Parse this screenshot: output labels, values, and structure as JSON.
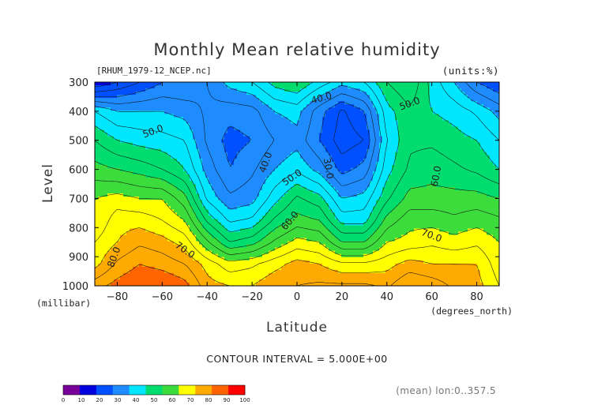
{
  "chart_data": {
    "type": "heatmap",
    "title": "Monthly Mean relative humidity",
    "subtitle": "[RHUM_1979-12_NCEP.nc]",
    "units_label": "(units:%)",
    "xlabel": "Latitude",
    "xlabel_units": "(degrees_north)",
    "ylabel": "Level",
    "ylabel_units": "(millibar)",
    "xlim": [
      -90,
      90
    ],
    "ylim": [
      1000,
      300
    ],
    "x_ticks": [
      -80,
      -60,
      -40,
      -20,
      0,
      20,
      40,
      60,
      80
    ],
    "x_tick_labels": [
      "−80",
      "−60",
      "−40",
      "−20",
      "0",
      "20",
      "40",
      "60",
      "80"
    ],
    "y_ticks": [
      300,
      400,
      500,
      600,
      700,
      800,
      900,
      1000
    ],
    "contour_interval_text": "CONTOUR INTERVAL = 5.000E+00",
    "footnote": "(mean) lon:0..357.5",
    "colorbar": {
      "levels": [
        0,
        10,
        20,
        30,
        40,
        50,
        60,
        70,
        80,
        90,
        100
      ],
      "colors": [
        "#7a009a",
        "#0000e0",
        "#0050ff",
        "#1e8cff",
        "#00e6ff",
        "#00dc6e",
        "#3cdc3c",
        "#ffff00",
        "#ffaa00",
        "#ff6400",
        "#ff0000"
      ]
    },
    "contour_labels": [
      "40.0",
      "50.0",
      "50.0",
      "40.0",
      "50.0",
      "30.0",
      "60.0",
      "60.0",
      "70.0",
      "70.0",
      "80.0"
    ],
    "lat": [
      -90,
      -80,
      -70,
      -60,
      -50,
      -40,
      -30,
      -20,
      -10,
      0,
      10,
      20,
      30,
      40,
      50,
      60,
      70,
      80,
      90
    ],
    "levels_mb": [
      1000,
      925,
      850,
      775,
      700,
      600,
      500,
      400,
      300
    ],
    "rh": [
      [
        88,
        78,
        75,
        70,
        70,
        62,
        55,
        45,
        15
      ],
      [
        92,
        86,
        80,
        78,
        72,
        60,
        50,
        40,
        20
      ],
      [
        95,
        90,
        84,
        78,
        70,
        58,
        48,
        40,
        25
      ],
      [
        95,
        88,
        82,
        75,
        70,
        55,
        47,
        40,
        30
      ],
      [
        92,
        85,
        78,
        70,
        62,
        50,
        45,
        38,
        30
      ],
      [
        82,
        78,
        66,
        54,
        44,
        38,
        34,
        34,
        35
      ],
      [
        80,
        72,
        55,
        44,
        36,
        30,
        28,
        32,
        42
      ],
      [
        80,
        74,
        58,
        46,
        38,
        34,
        30,
        33,
        45
      ],
      [
        84,
        78,
        66,
        56,
        48,
        40,
        35,
        40,
        52
      ],
      [
        85,
        82,
        72,
        62,
        56,
        44,
        38,
        42,
        55
      ],
      [
        86,
        80,
        70,
        60,
        52,
        38,
        30,
        32,
        48
      ],
      [
        86,
        76,
        60,
        48,
        40,
        28,
        22,
        24,
        42
      ],
      [
        86,
        76,
        60,
        48,
        42,
        32,
        25,
        30,
        45
      ],
      [
        84,
        78,
        70,
        62,
        54,
        48,
        45,
        48,
        55
      ],
      [
        90,
        82,
        72,
        68,
        62,
        56,
        54,
        54,
        60
      ],
      [
        88,
        80,
        74,
        68,
        62,
        58,
        54,
        50,
        48
      ],
      [
        84,
        80,
        72,
        66,
        62,
        56,
        52,
        48,
        40
      ],
      [
        82,
        80,
        74,
        68,
        62,
        54,
        50,
        44,
        30
      ],
      [
        75,
        72,
        70,
        66,
        60,
        50,
        45,
        38,
        25
      ]
    ]
  }
}
